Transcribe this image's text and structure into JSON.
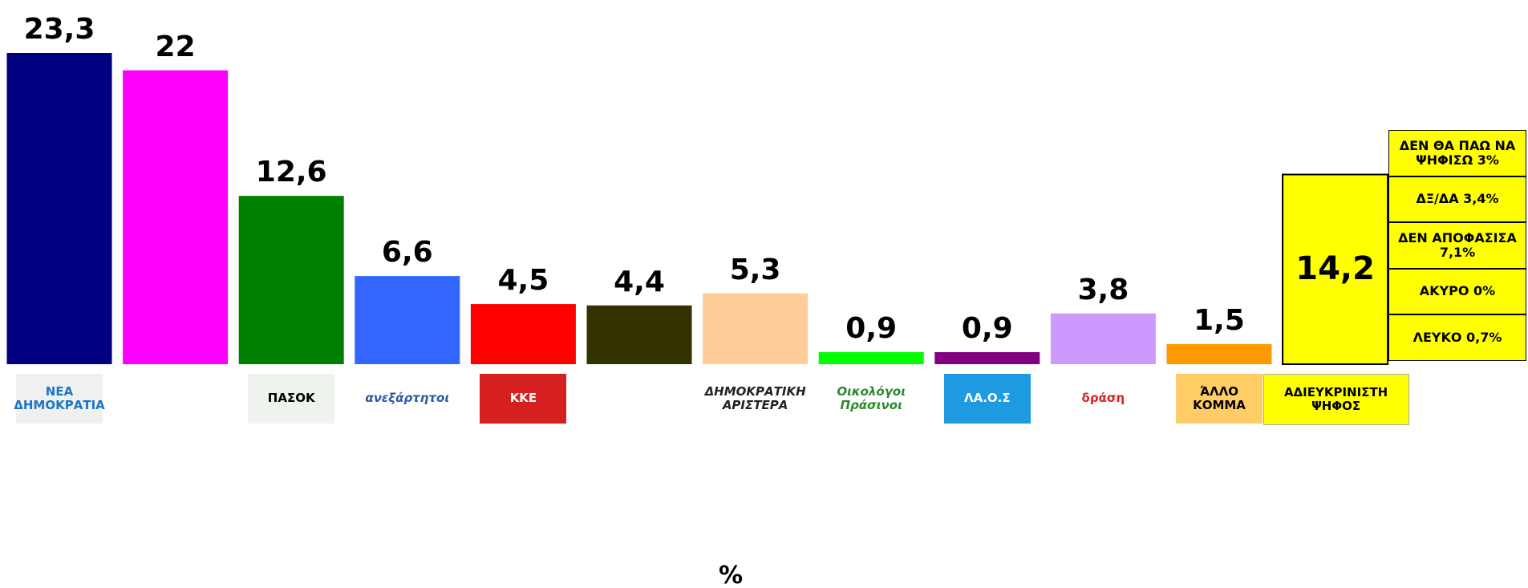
{
  "chart_data": {
    "type": "bar",
    "categories": [
      "ΝΕΑ ΔΗΜΟΚΡΑΤΙΑ",
      null,
      "ΠΑΣΟΚ",
      "ανεξάρτητοι",
      "ΚΚΕ",
      null,
      "ΔΗΜΟΚΡΑΤΙΚΗ ΑΡΙΣΤΕΡΑ",
      "Οικολόγοι Πράσινοι",
      "ΛΑ.Ο.Σ",
      "δράση",
      "ΆΛΛΟ ΚΟΜΜΑ",
      "ΑΔΙΕΥΚΡΙΝΙΣΤΗ ΨΗΦΟΣ"
    ],
    "values": [
      23.3,
      22,
      12.6,
      6.6,
      4.5,
      4.4,
      5.3,
      0.9,
      0.9,
      3.8,
      1.5,
      14.2
    ],
    "value_labels": [
      "23,3",
      "22",
      "12,6",
      "6,6",
      "4,5",
      "4,4",
      "5,3",
      "0,9",
      "0,9",
      "3,8",
      "1,5",
      "14,2"
    ],
    "colors": [
      "#000080",
      "#ff00ff",
      "#008000",
      "#3366ff",
      "#ff0000",
      "#333300",
      "#ffcc99",
      "#00ff00",
      "#800080",
      "#cc99ff",
      "#ff9900",
      "#ffff00"
    ],
    "ylim": [
      0,
      23.3
    ],
    "x_label": "%",
    "annotations": [
      "ΔΕΝ ΘΑ ΠΑΩ ΝΑ ΨΗΦΙΣΩ 3%",
      "ΔΞ/ΔΑ 3,4%",
      "ΔΕΝ ΑΠΟΦΑΣΙΣΑ 7,1%",
      "ΑΚΥΡΟ 0%",
      "ΛΕΥΚΟ 0,7%"
    ]
  }
}
